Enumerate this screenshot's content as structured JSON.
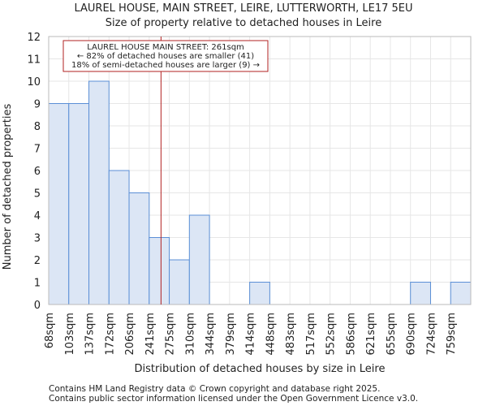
{
  "title_line1": "LAUREL HOUSE, MAIN STREET, LEIRE, LUTTERWORTH, LE17 5EU",
  "title_line2": "Size of property relative to detached houses in Leire",
  "footer_line1": "Contains HM Land Registry data © Crown copyright and database right 2025.",
  "footer_line2": "Contains public sector information licensed under the Open Government Licence v3.0.",
  "colors": {
    "bar_fill": "#dce6f5",
    "bar_edge": "#5b8fd6",
    "marker": "#b22222",
    "grid": "#e6e6e6"
  },
  "chart_data": {
    "type": "bar",
    "xlabel": "Distribution of detached houses by size in Leire",
    "ylabel": "Number of detached properties",
    "ylim": [
      0,
      12
    ],
    "yticks": [
      0,
      1,
      2,
      3,
      4,
      5,
      6,
      7,
      8,
      9,
      10,
      11,
      12
    ],
    "bin_edges": [
      "68sqm",
      "103sqm",
      "137sqm",
      "172sqm",
      "206sqm",
      "241sqm",
      "275sqm",
      "310sqm",
      "344sqm",
      "379sqm",
      "414sqm",
      "448sqm",
      "483sqm",
      "517sqm",
      "552sqm",
      "586sqm",
      "621sqm",
      "655sqm",
      "690sqm",
      "724sqm",
      "759sqm"
    ],
    "values": [
      9,
      9,
      10,
      6,
      5,
      3,
      2,
      4,
      0,
      0,
      1,
      0,
      0,
      0,
      0,
      0,
      0,
      0,
      1,
      0,
      1
    ],
    "marker_value_sqm": 261,
    "annotation": {
      "line1": "LAUREL HOUSE MAIN STREET: 261sqm",
      "line2": "← 82% of detached houses are smaller (41)",
      "line3": "18% of semi-detached houses are larger (9) →"
    }
  }
}
